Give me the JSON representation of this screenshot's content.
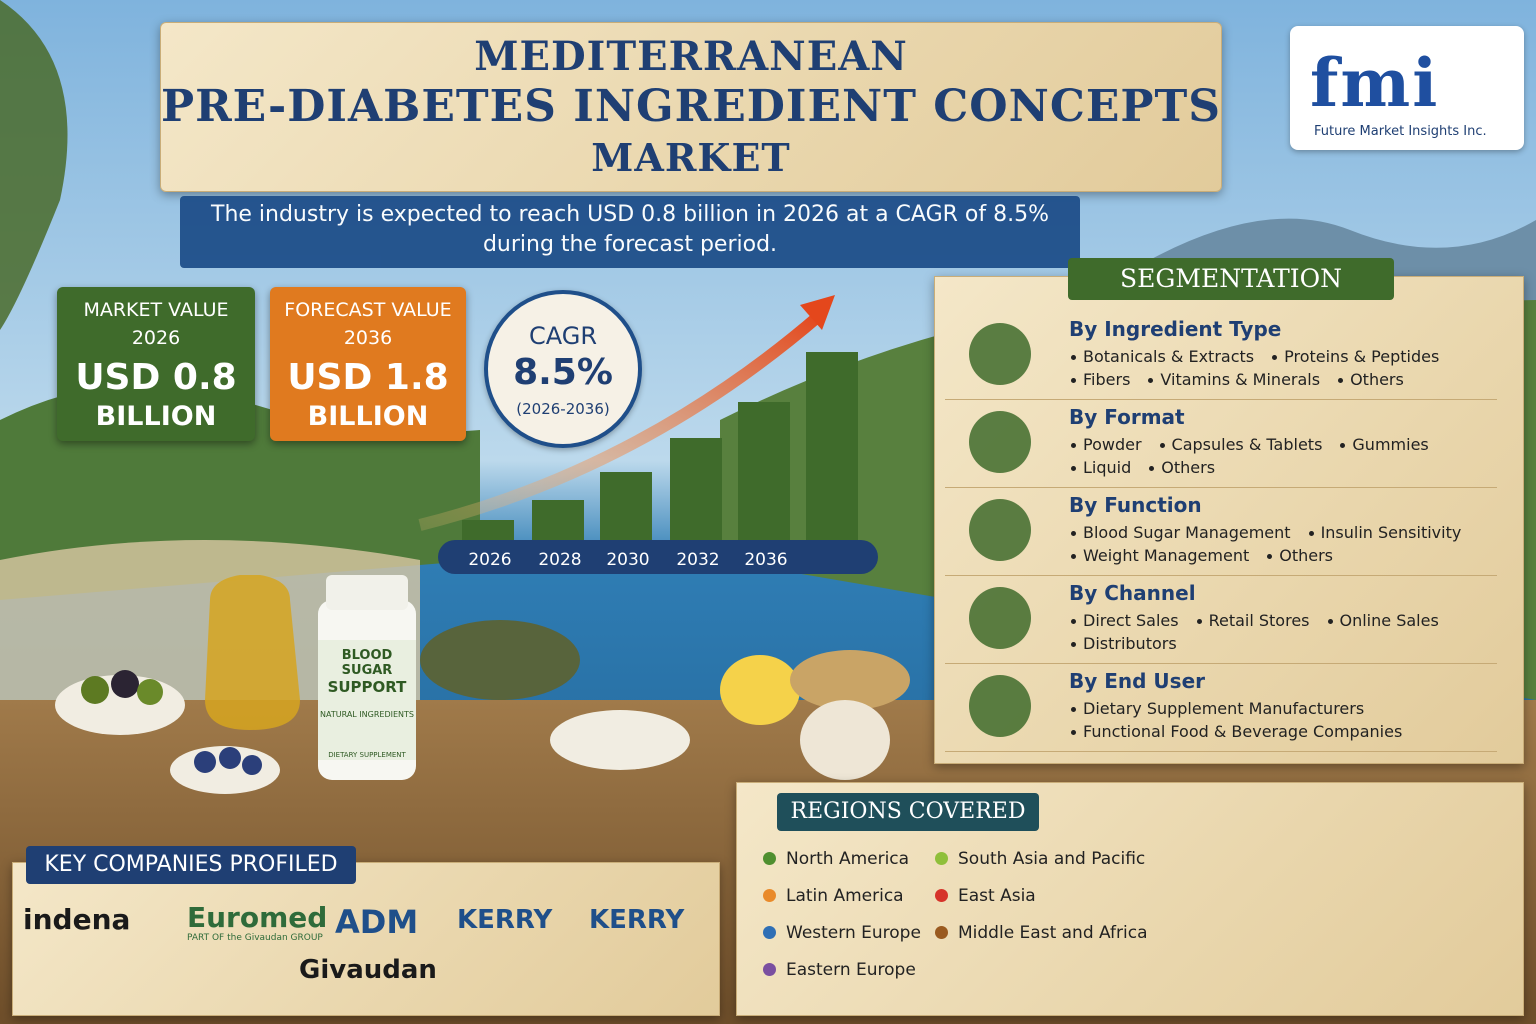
{
  "header": {
    "title_lines": [
      "MEDITERRANEAN",
      "PRE-DIABETES INGREDIENT CONCEPTS",
      "MARKET"
    ],
    "subtitle_lines": [
      "The industry is expected to reach USD 0.8 billion in 2026 at a CAGR of 8.5%",
      "during the forecast period."
    ]
  },
  "logo": {
    "mark": "fmi",
    "tagline": "Future Market Insights Inc."
  },
  "market_value": {
    "label": "MARKET VALUE",
    "year": "2026",
    "value": "USD 0.8",
    "unit": "BILLION"
  },
  "forecast_value": {
    "label": "FORECAST VALUE",
    "year": "2036",
    "value": "USD 1.8",
    "unit": "BILLION"
  },
  "cagr": {
    "label": "CAGR",
    "value": "8.5%",
    "period": "(2026-2036)"
  },
  "growth_years": [
    "2026",
    "2028",
    "2030",
    "2032",
    "2036"
  ],
  "product": {
    "name_lines": [
      "BLOOD SUGAR",
      "SUPPORT"
    ],
    "claim": "NATURAL INGREDIENTS",
    "type": "DIETARY SUPPLEMENT"
  },
  "segmentation": {
    "title": "SEGMENTATION",
    "groups": [
      {
        "title": "By Ingredient Type",
        "items": [
          "Botanicals & Extracts",
          "Proteins & Peptides",
          "Fibers",
          "Vitamins & Minerals",
          "Others"
        ]
      },
      {
        "title": "By Format",
        "items": [
          "Powder",
          "Capsules & Tablets",
          "Gummies",
          "Liquid",
          "Others"
        ]
      },
      {
        "title": "By Function",
        "items": [
          "Blood Sugar Management",
          "Insulin Sensitivity",
          "Weight Management",
          "Others"
        ]
      },
      {
        "title": "By Channel",
        "items": [
          "Direct Sales",
          "Retail Stores",
          "Online Sales",
          "Distributors"
        ]
      },
      {
        "title": "By End User",
        "items": [
          "Dietary Supplement Manufacturers",
          "Functional Food & Beverage Companies"
        ]
      }
    ]
  },
  "regions": {
    "title": "REGIONS COVERED",
    "items": [
      {
        "name": "North America",
        "color": "#4f8f2f"
      },
      {
        "name": "Latin America",
        "color": "#e98a2a"
      },
      {
        "name": "Western Europe",
        "color": "#2f6fb5"
      },
      {
        "name": "Eastern Europe",
        "color": "#7a4fa0"
      },
      {
        "name": "South Asia and Pacific",
        "color": "#8fbf3a"
      },
      {
        "name": "East Asia",
        "color": "#d6332a"
      },
      {
        "name": "Middle East and Africa",
        "color": "#9a5a1f"
      }
    ]
  },
  "companies": {
    "title": "KEY COMPANIES PROFILED",
    "items": [
      {
        "name": "indena",
        "color": "#1a1a1a"
      },
      {
        "name": "Euromed",
        "note": "PART OF the Givaudan GROUP",
        "color": "#2f6b3a"
      },
      {
        "name": "ADM",
        "color": "#1f4f8a"
      },
      {
        "name": "KERRY",
        "color": "#1f4f8a"
      },
      {
        "name": "KERRY",
        "color": "#1f4f8a"
      },
      {
        "name": "Givaudan",
        "color": "#1a1a1a"
      }
    ]
  }
}
